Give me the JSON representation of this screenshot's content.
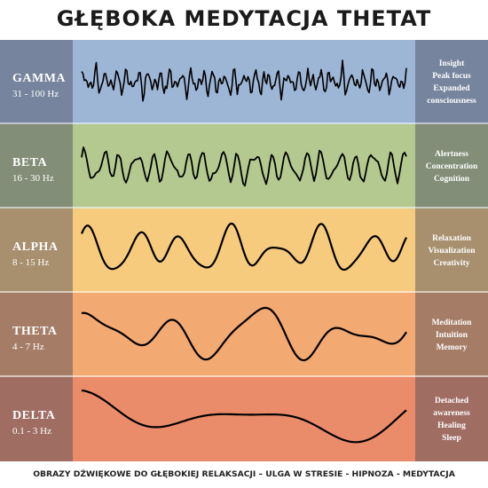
{
  "title": "Głęboka medytacja thetat",
  "footer": "Obrazy dźwiękowe do głębokiej relaksacji – ulga w stresie - hipnoza - medytacja",
  "bands": [
    {
      "name": "GAMMA",
      "range": "31 - 100 Hz",
      "color": "#9db6d6",
      "benefits": [
        "Insight",
        "Peak focus",
        "Expanded",
        "consciousness"
      ]
    },
    {
      "name": "BETA",
      "range": "16 - 30 Hz",
      "color": "#b3c98f",
      "benefits": [
        "Alertness",
        "Concentration",
        "Cognition"
      ]
    },
    {
      "name": "ALPHA",
      "range": "8 - 15 Hz",
      "color": "#f7cb7e",
      "benefits": [
        "Relaxation",
        "Visualization",
        "Creativity"
      ]
    },
    {
      "name": "THETA",
      "range": "4 - 7 Hz",
      "color": "#f3a972",
      "benefits": [
        "Meditation",
        "Intuition",
        "Memory"
      ]
    },
    {
      "name": "DELTA",
      "range": "0.1 - 3 Hz",
      "color": "#ea8c6a",
      "benefits": [
        "Detached",
        "awareness",
        "Healing",
        "Sleep"
      ]
    }
  ]
}
